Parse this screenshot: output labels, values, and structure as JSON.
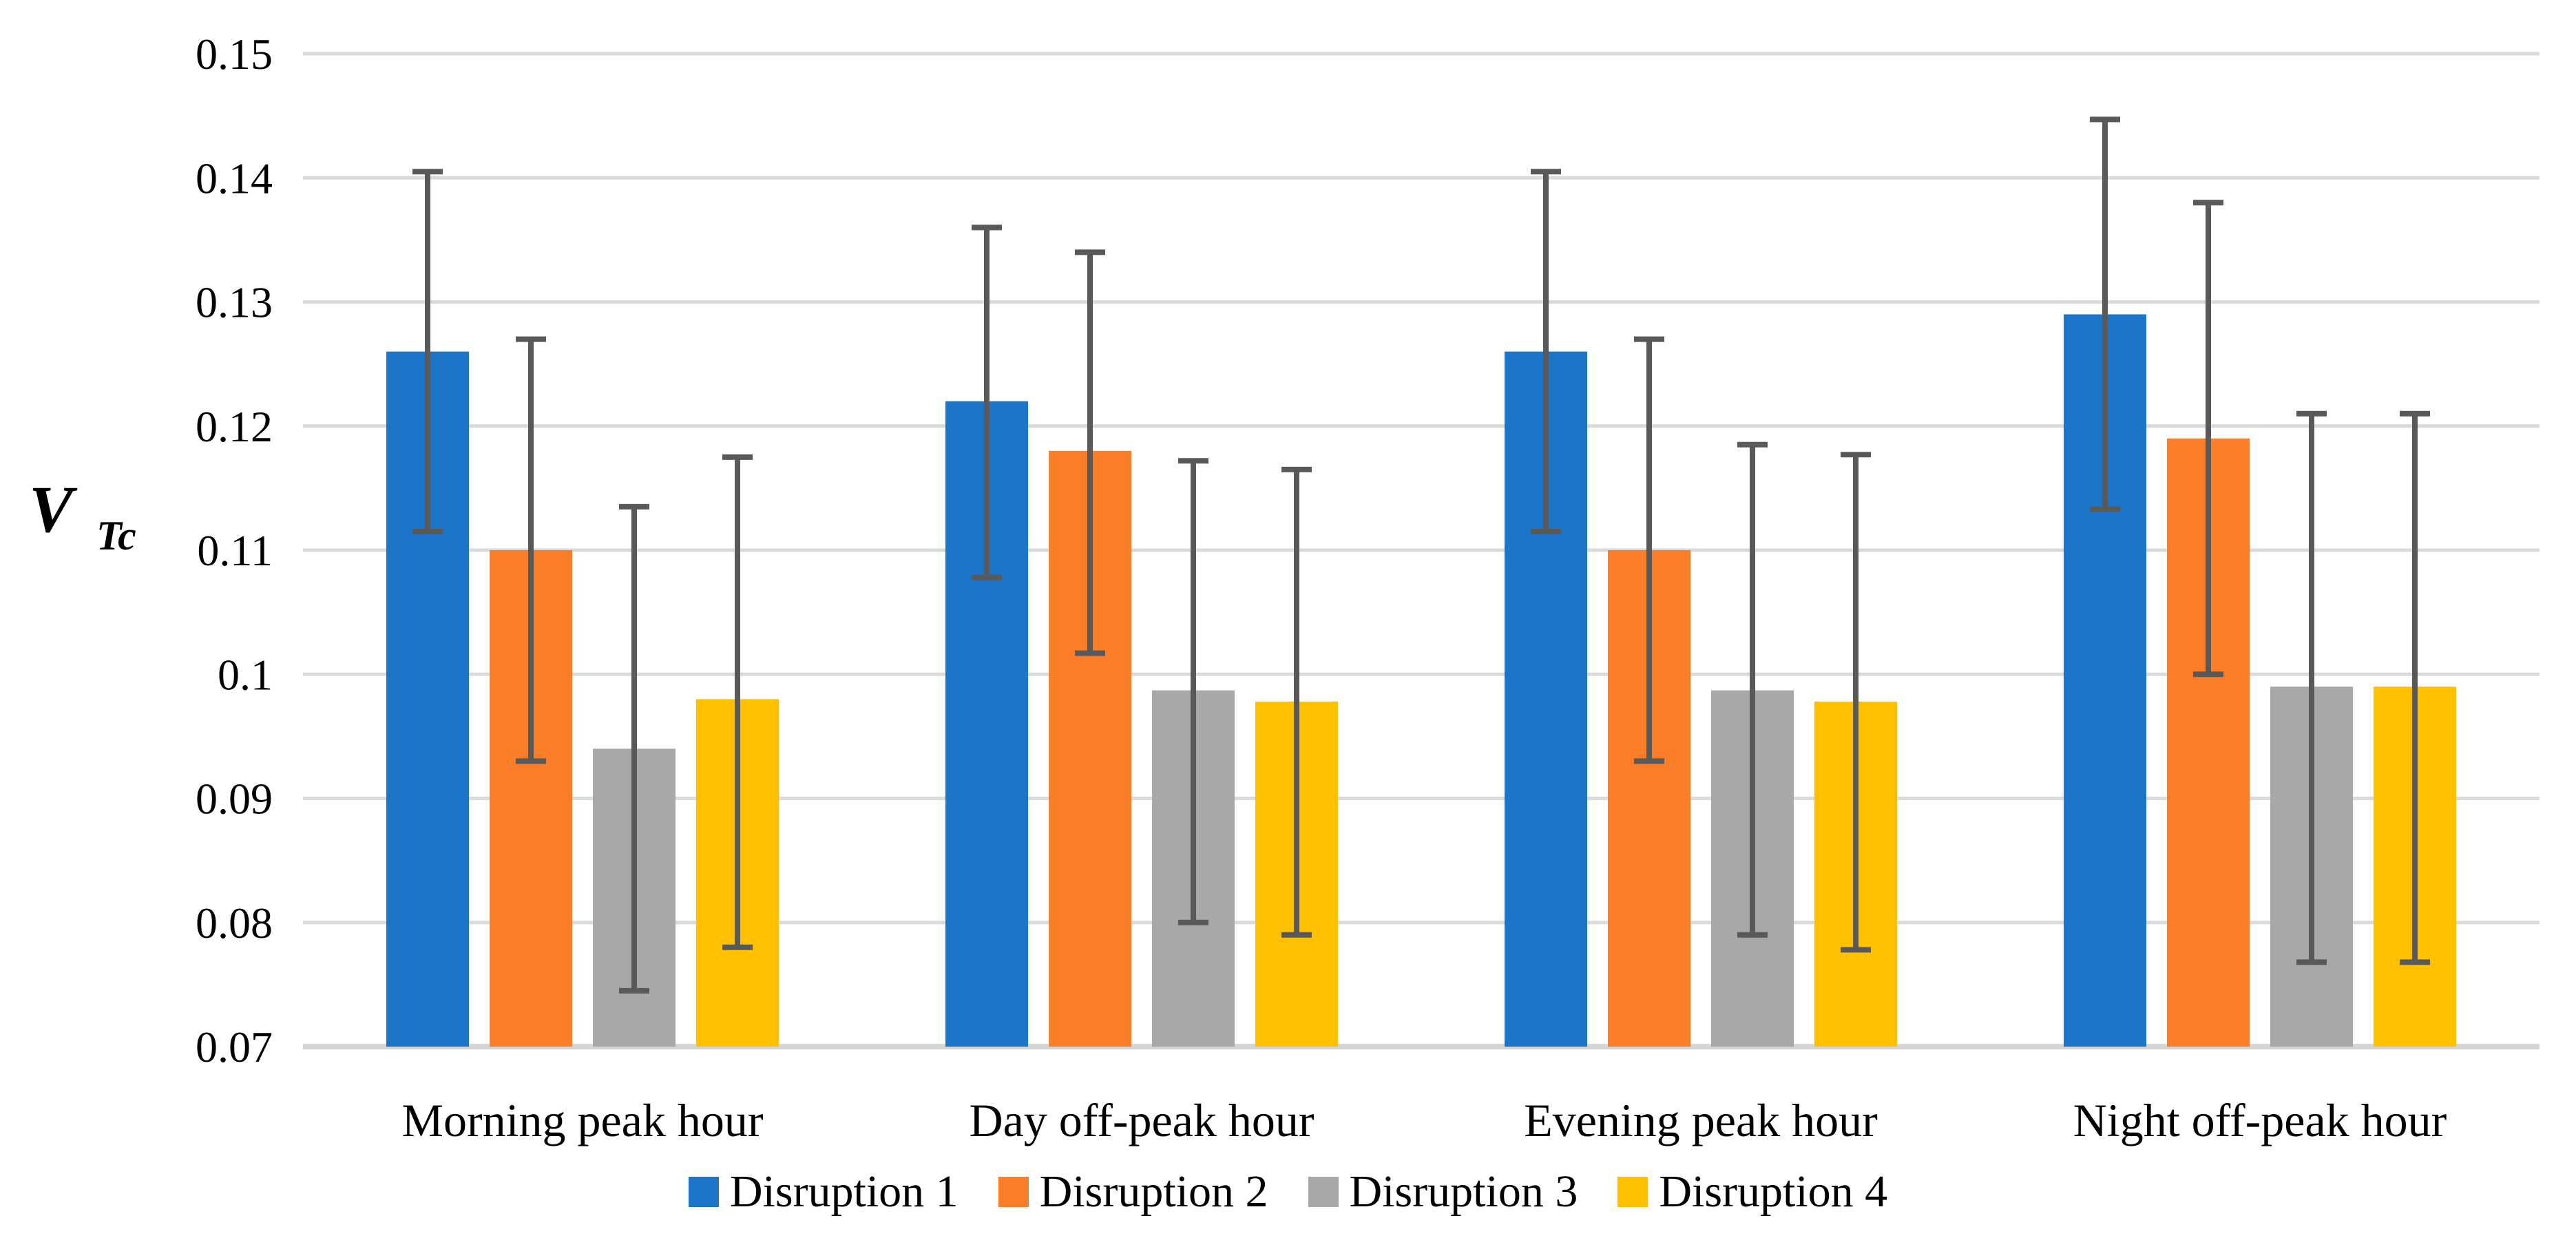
{
  "chart_data": {
    "type": "bar",
    "title": "",
    "ylabel": {
      "main": "V",
      "sub": "Tc"
    },
    "xlabel": "",
    "categories": [
      "Morning peak hour",
      "Day off-peak hour",
      "Evening peak hour",
      "Night off-peak hour"
    ],
    "series": [
      {
        "name": "Disruption 1",
        "color": "#1C75C8",
        "values": [
          0.126,
          0.122,
          0.126,
          0.129
        ],
        "error_upper": [
          0.1405,
          0.136,
          0.1405,
          0.1447
        ],
        "error_lower": [
          0.1115,
          0.1078,
          0.1115,
          0.1133
        ]
      },
      {
        "name": "Disruption 2",
        "color": "#FB7D28",
        "values": [
          0.11,
          0.118,
          0.11,
          0.119
        ],
        "error_upper": [
          0.127,
          0.134,
          0.127,
          0.138
        ],
        "error_lower": [
          0.093,
          0.1017,
          0.093,
          0.1
        ]
      },
      {
        "name": "Disruption 3",
        "color": "#A8A8A8",
        "values": [
          0.094,
          0.0987,
          0.0987,
          0.099
        ],
        "error_upper": [
          0.1135,
          0.1172,
          0.1185,
          0.121
        ],
        "error_lower": [
          0.0745,
          0.08,
          0.079,
          0.0768
        ]
      },
      {
        "name": "Disruption 4",
        "color": "#FFC000",
        "values": [
          0.098,
          0.0978,
          0.0978,
          0.099
        ],
        "error_upper": [
          0.1175,
          0.1165,
          0.1177,
          0.121
        ],
        "error_lower": [
          0.078,
          0.079,
          0.0778,
          0.0768
        ]
      }
    ],
    "ylim": [
      0.07,
      0.15
    ],
    "ytick_step": 0.01,
    "ytick_labels": [
      "0.15",
      "0.14",
      "0.13",
      "0.12",
      "0.11",
      "0.1",
      "0.09",
      "0.08",
      "0.07"
    ],
    "grid": true,
    "gridline_color": "#DADADA",
    "axis_line_color": "#D5D5D5",
    "error_bar_color": "#595959",
    "legend_position": "bottom",
    "background": "#FFFFFF"
  }
}
